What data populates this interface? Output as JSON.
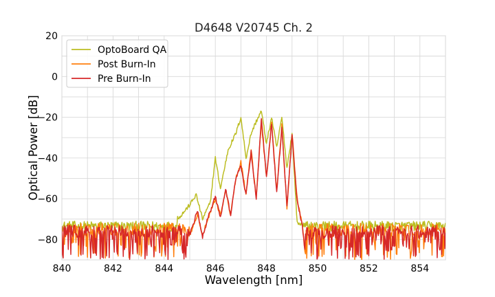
{
  "chart_data": {
    "type": "line",
    "title": "D4648 V20745 Ch. 2",
    "xlabel": "Wavelength [nm]",
    "ylabel": "Optical Power [dB]",
    "xlim": [
      840,
      855
    ],
    "ylim": [
      -90,
      20
    ],
    "xticks": [
      840,
      842,
      844,
      846,
      848,
      850,
      852,
      854
    ],
    "yticks": [
      20,
      0,
      -20,
      -40,
      -60,
      -80
    ],
    "xtick_labels": [
      "840",
      "842",
      "844",
      "846",
      "848",
      "850",
      "852",
      "854"
    ],
    "ytick_labels": [
      "20",
      "0",
      "−20",
      "−40",
      "−60",
      "−80"
    ],
    "grid": true,
    "legend_position": "top-left",
    "noise_floor_note": "",
    "series": [
      {
        "name": "OptoBoard QA",
        "color": "#bcbd22",
        "floor": [
          -76,
          -71
        ],
        "x": [
          840,
          843,
          844,
          844.6,
          845,
          845.25,
          845.5,
          845.8,
          846,
          846.2,
          846.5,
          846.8,
          847,
          847.2,
          847.4,
          847.6,
          847.8,
          848,
          848.2,
          848.4,
          848.6,
          848.8,
          849,
          849.2,
          849.5,
          849.6,
          855
        ],
        "y": [
          -74,
          -74,
          -70,
          -69,
          -63,
          -58,
          -70,
          -62,
          -40,
          -55,
          -36,
          -28,
          -20,
          -40,
          -28,
          -22,
          -17,
          -33,
          -20,
          -35,
          -20,
          -45,
          -28,
          -72,
          -73,
          -74,
          -74
        ]
      },
      {
        "name": "Post Burn-In",
        "color": "#ff7f0e",
        "floor": [
          -90,
          -72
        ],
        "x": [
          840,
          845,
          845.3,
          845.5,
          845.7,
          846,
          846.2,
          846.4,
          846.6,
          846.8,
          847,
          847.2,
          847.4,
          847.6,
          847.8,
          848,
          848.2,
          848.4,
          848.6,
          848.8,
          849,
          849.2,
          849.4,
          849.5,
          855
        ],
        "y": [
          -85,
          -78,
          -68,
          -78,
          -70,
          -60,
          -68,
          -56,
          -68,
          -50,
          -42,
          -58,
          -36,
          -60,
          -22,
          -50,
          -22,
          -56,
          -24,
          -65,
          -28,
          -60,
          -72,
          -85,
          -85
        ]
      },
      {
        "name": "Pre Burn-In",
        "color": "#d62728",
        "floor": [
          -90,
          -73
        ],
        "x": [
          840,
          845,
          845.3,
          845.5,
          845.7,
          846,
          846.2,
          846.4,
          846.6,
          846.8,
          847,
          847.2,
          847.4,
          847.6,
          847.8,
          848,
          848.2,
          848.4,
          848.6,
          848.8,
          849,
          849.2,
          849.4,
          849.5,
          855
        ],
        "y": [
          -85,
          -78,
          -66,
          -79,
          -70,
          -59,
          -69,
          -55,
          -68,
          -50,
          -44,
          -58,
          -37,
          -60,
          -21,
          -49,
          -23,
          -57,
          -25,
          -64,
          -29,
          -61,
          -73,
          -85,
          -85
        ]
      }
    ]
  }
}
